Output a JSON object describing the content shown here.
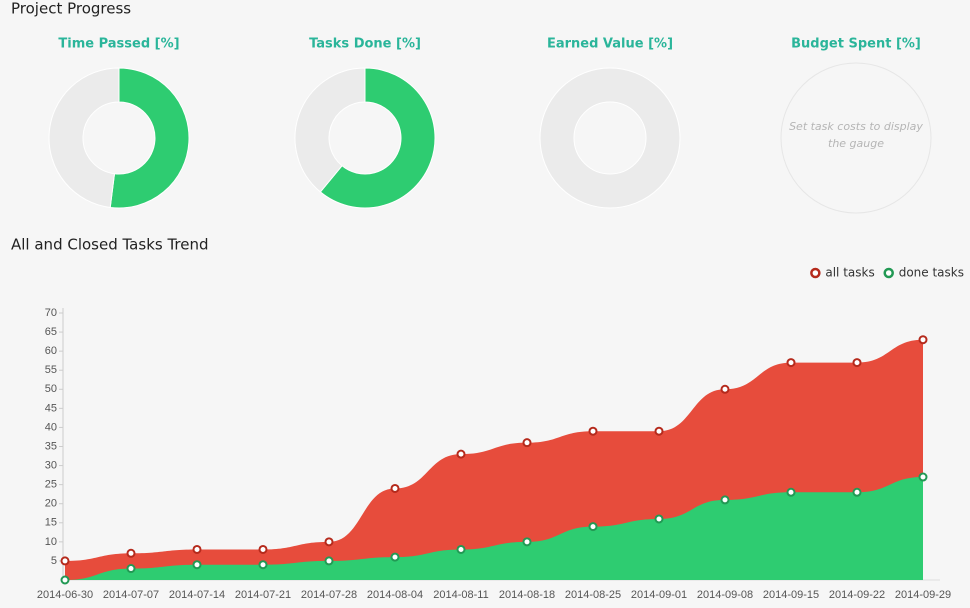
{
  "header": {
    "title": "Project Progress"
  },
  "chart_data": [
    {
      "type": "donut",
      "title": "Time Passed [%]",
      "values": [
        52,
        48
      ],
      "colors": [
        "#2ecc71",
        "#ebebeb"
      ]
    },
    {
      "type": "donut",
      "title": "Tasks Done [%]",
      "values": [
        61,
        39
      ],
      "colors": [
        "#2ecc71",
        "#ebebeb"
      ]
    },
    {
      "type": "donut",
      "title": "Earned Value [%]",
      "values": [
        0,
        100
      ],
      "colors": [
        "#2ecc71",
        "#ebebeb"
      ]
    },
    {
      "type": "donut",
      "title": "Budget Spent [%]",
      "message": "Set task costs to display the gauge"
    },
    {
      "type": "area",
      "title": "All and Closed Tasks Trend",
      "x": [
        "2014-06-30",
        "2014-07-07",
        "2014-07-14",
        "2014-07-21",
        "2014-07-28",
        "2014-08-04",
        "2014-08-11",
        "2014-08-18",
        "2014-08-25",
        "2014-09-01",
        "2014-09-08",
        "2014-09-15",
        "2014-09-22",
        "2014-09-29"
      ],
      "series": [
        {
          "name": "all tasks",
          "color": "#e74c3c",
          "marker": "#b52a1c",
          "values": [
            5,
            7,
            8,
            8,
            10,
            24,
            33,
            36,
            39,
            39,
            50,
            57,
            57,
            63
          ]
        },
        {
          "name": "done tasks",
          "color": "#2ecc71",
          "marker": "#229954",
          "values": [
            0,
            3,
            4,
            4,
            5,
            6,
            8,
            10,
            14,
            16,
            21,
            23,
            23,
            27
          ]
        }
      ],
      "ylim": [
        0,
        70
      ],
      "yticks": [
        5,
        10,
        15,
        20,
        25,
        30,
        35,
        40,
        45,
        50,
        55,
        60,
        65,
        70
      ],
      "legend": "top-right"
    }
  ]
}
